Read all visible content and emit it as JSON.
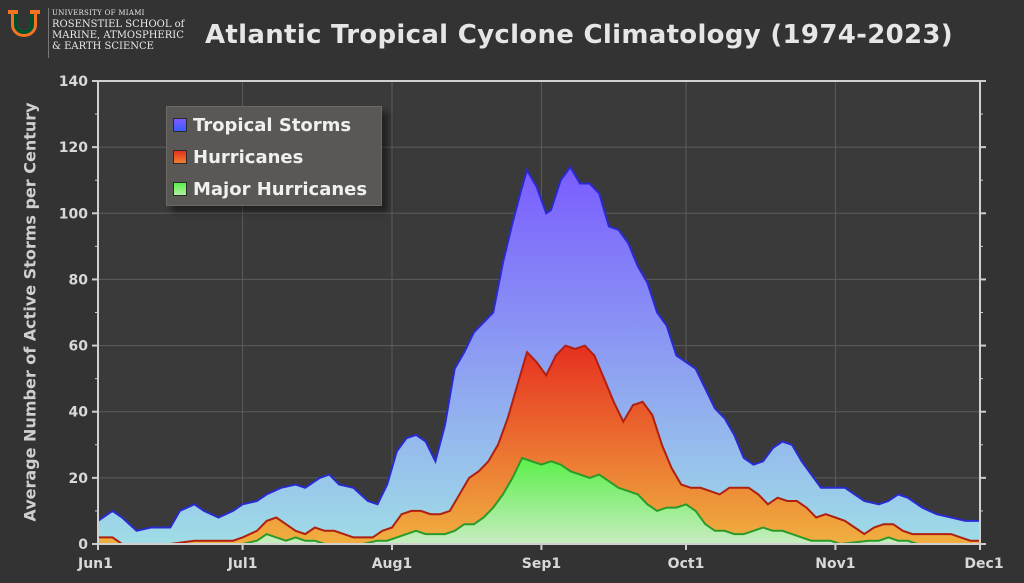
{
  "logo": {
    "line1": "UNIVERSITY OF MIAMI",
    "line2": "ROSENSTIEL SCHOOL of",
    "line3": "MARINE, ATMOSPHERIC",
    "line4": "& EARTH SCIENCE"
  },
  "chart_data": {
    "type": "area",
    "title": "Atlantic Tropical Cyclone Climatology (1974-2023)",
    "ylabel": "Average Number of Active Storms per Century",
    "xlabel": "",
    "ylim": [
      0,
      140
    ],
    "yticks": [
      0,
      20,
      40,
      60,
      80,
      100,
      120,
      140
    ],
    "xlim": [
      0,
      183
    ],
    "xticks": [
      {
        "day": 0,
        "label": "Jun1"
      },
      {
        "day": 30,
        "label": "Jul1"
      },
      {
        "day": 61,
        "label": "Aug1"
      },
      {
        "day": 92,
        "label": "Sep1"
      },
      {
        "day": 122,
        "label": "Oct1"
      },
      {
        "day": 153,
        "label": "Nov1"
      },
      {
        "day": 183,
        "label": "Dec1"
      }
    ],
    "grid": true,
    "legend": "top-left",
    "series": [
      {
        "name": "Tropical Storms",
        "color_top": "#7a5cff",
        "color_bottom": "#9fdde6",
        "line_color": "#2a2ad0",
        "points": [
          [
            0,
            7
          ],
          [
            3,
            10
          ],
          [
            5,
            8
          ],
          [
            8,
            4
          ],
          [
            11,
            5
          ],
          [
            15,
            5
          ],
          [
            17,
            10
          ],
          [
            20,
            12
          ],
          [
            22,
            10
          ],
          [
            25,
            8
          ],
          [
            28,
            10
          ],
          [
            30,
            12
          ],
          [
            33,
            13
          ],
          [
            35,
            15
          ],
          [
            38,
            17
          ],
          [
            41,
            18
          ],
          [
            43,
            17
          ],
          [
            46,
            20
          ],
          [
            48,
            21
          ],
          [
            50,
            18
          ],
          [
            53,
            17
          ],
          [
            56,
            13
          ],
          [
            58,
            12
          ],
          [
            60,
            18
          ],
          [
            62,
            28
          ],
          [
            64,
            32
          ],
          [
            66,
            33
          ],
          [
            68,
            31
          ],
          [
            70,
            25
          ],
          [
            72,
            36
          ],
          [
            74,
            53
          ],
          [
            76,
            58
          ],
          [
            78,
            64
          ],
          [
            80,
            67
          ],
          [
            82,
            70
          ],
          [
            84,
            85
          ],
          [
            86,
            97
          ],
          [
            88,
            108
          ],
          [
            89,
            113
          ],
          [
            91,
            108
          ],
          [
            93,
            100
          ],
          [
            94,
            101
          ],
          [
            96,
            110
          ],
          [
            98,
            114
          ],
          [
            100,
            109
          ],
          [
            102,
            109
          ],
          [
            104,
            106
          ],
          [
            106,
            96
          ],
          [
            108,
            95
          ],
          [
            110,
            91
          ],
          [
            112,
            84
          ],
          [
            114,
            79
          ],
          [
            116,
            70
          ],
          [
            118,
            66
          ],
          [
            120,
            57
          ],
          [
            122,
            55
          ],
          [
            124,
            53
          ],
          [
            126,
            47
          ],
          [
            128,
            41
          ],
          [
            130,
            38
          ],
          [
            132,
            33
          ],
          [
            134,
            26
          ],
          [
            136,
            24
          ],
          [
            138,
            25
          ],
          [
            140,
            29
          ],
          [
            142,
            31
          ],
          [
            144,
            30
          ],
          [
            146,
            25
          ],
          [
            148,
            21
          ],
          [
            150,
            17
          ],
          [
            153,
            17
          ],
          [
            155,
            17
          ],
          [
            157,
            15
          ],
          [
            159,
            13
          ],
          [
            162,
            12
          ],
          [
            164,
            13
          ],
          [
            166,
            15
          ],
          [
            168,
            14
          ],
          [
            171,
            11
          ],
          [
            174,
            9
          ],
          [
            177,
            8
          ],
          [
            180,
            7
          ],
          [
            183,
            7
          ]
        ]
      },
      {
        "name": "Hurricanes",
        "color_top": "#e63020",
        "color_bottom": "#f0b040",
        "line_color": "#b02010",
        "points": [
          [
            0,
            2
          ],
          [
            3,
            2
          ],
          [
            5,
            0
          ],
          [
            10,
            0
          ],
          [
            15,
            0
          ],
          [
            20,
            1
          ],
          [
            25,
            1
          ],
          [
            28,
            1
          ],
          [
            30,
            2
          ],
          [
            33,
            4
          ],
          [
            35,
            7
          ],
          [
            37,
            8
          ],
          [
            39,
            6
          ],
          [
            41,
            4
          ],
          [
            43,
            3
          ],
          [
            45,
            5
          ],
          [
            47,
            4
          ],
          [
            49,
            4
          ],
          [
            51,
            3
          ],
          [
            53,
            2
          ],
          [
            55,
            2
          ],
          [
            57,
            2
          ],
          [
            59,
            4
          ],
          [
            61,
            5
          ],
          [
            63,
            9
          ],
          [
            65,
            10
          ],
          [
            67,
            10
          ],
          [
            69,
            9
          ],
          [
            71,
            9
          ],
          [
            73,
            10
          ],
          [
            75,
            15
          ],
          [
            77,
            20
          ],
          [
            79,
            22
          ],
          [
            81,
            25
          ],
          [
            83,
            30
          ],
          [
            85,
            38
          ],
          [
            87,
            48
          ],
          [
            89,
            58
          ],
          [
            91,
            55
          ],
          [
            93,
            51
          ],
          [
            95,
            57
          ],
          [
            97,
            60
          ],
          [
            99,
            59
          ],
          [
            101,
            60
          ],
          [
            103,
            57
          ],
          [
            105,
            50
          ],
          [
            107,
            43
          ],
          [
            109,
            37
          ],
          [
            111,
            42
          ],
          [
            113,
            43
          ],
          [
            115,
            39
          ],
          [
            117,
            30
          ],
          [
            119,
            23
          ],
          [
            121,
            18
          ],
          [
            123,
            17
          ],
          [
            125,
            17
          ],
          [
            127,
            16
          ],
          [
            129,
            15
          ],
          [
            131,
            17
          ],
          [
            133,
            17
          ],
          [
            135,
            17
          ],
          [
            137,
            15
          ],
          [
            139,
            12
          ],
          [
            141,
            14
          ],
          [
            143,
            13
          ],
          [
            145,
            13
          ],
          [
            147,
            11
          ],
          [
            149,
            8
          ],
          [
            151,
            9
          ],
          [
            153,
            8
          ],
          [
            155,
            7
          ],
          [
            157,
            5
          ],
          [
            159,
            3
          ],
          [
            161,
            5
          ],
          [
            163,
            6
          ],
          [
            165,
            6
          ],
          [
            167,
            4
          ],
          [
            169,
            3
          ],
          [
            171,
            3
          ],
          [
            173,
            3
          ],
          [
            175,
            3
          ],
          [
            177,
            3
          ],
          [
            179,
            2
          ],
          [
            181,
            1
          ],
          [
            183,
            1
          ]
        ]
      },
      {
        "name": "Major Hurricanes",
        "color_top": "#5af04a",
        "color_bottom": "#c8ecc0",
        "line_color": "#2a9a2a",
        "points": [
          [
            0,
            0
          ],
          [
            30,
            0
          ],
          [
            33,
            1
          ],
          [
            35,
            3
          ],
          [
            37,
            2
          ],
          [
            39,
            1
          ],
          [
            41,
            2
          ],
          [
            43,
            1
          ],
          [
            45,
            1
          ],
          [
            47,
            0
          ],
          [
            55,
            0
          ],
          [
            58,
            1
          ],
          [
            60,
            1
          ],
          [
            62,
            2
          ],
          [
            64,
            3
          ],
          [
            66,
            4
          ],
          [
            68,
            3
          ],
          [
            70,
            3
          ],
          [
            72,
            3
          ],
          [
            74,
            4
          ],
          [
            76,
            6
          ],
          [
            78,
            6
          ],
          [
            80,
            8
          ],
          [
            82,
            11
          ],
          [
            84,
            15
          ],
          [
            86,
            20
          ],
          [
            88,
            26
          ],
          [
            90,
            25
          ],
          [
            92,
            24
          ],
          [
            94,
            25
          ],
          [
            96,
            24
          ],
          [
            98,
            22
          ],
          [
            100,
            21
          ],
          [
            102,
            20
          ],
          [
            104,
            21
          ],
          [
            106,
            19
          ],
          [
            108,
            17
          ],
          [
            110,
            16
          ],
          [
            112,
            15
          ],
          [
            114,
            12
          ],
          [
            116,
            10
          ],
          [
            118,
            11
          ],
          [
            120,
            11
          ],
          [
            122,
            12
          ],
          [
            124,
            10
          ],
          [
            126,
            6
          ],
          [
            128,
            4
          ],
          [
            130,
            4
          ],
          [
            132,
            3
          ],
          [
            134,
            3
          ],
          [
            136,
            4
          ],
          [
            138,
            5
          ],
          [
            140,
            4
          ],
          [
            142,
            4
          ],
          [
            144,
            3
          ],
          [
            146,
            2
          ],
          [
            148,
            1
          ],
          [
            150,
            1
          ],
          [
            152,
            1
          ],
          [
            154,
            0
          ],
          [
            160,
            1
          ],
          [
            162,
            1
          ],
          [
            164,
            2
          ],
          [
            166,
            1
          ],
          [
            168,
            1
          ],
          [
            170,
            0
          ],
          [
            183,
            0
          ]
        ]
      }
    ]
  }
}
